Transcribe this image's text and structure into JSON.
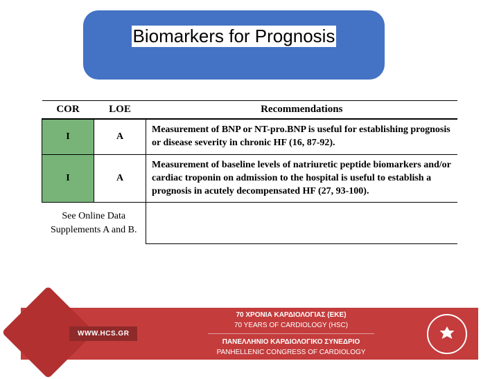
{
  "title": "Biomarkers for Prognosis",
  "table": {
    "headers": {
      "cor": "COR",
      "loe": "LOE",
      "rec": "Recommendations"
    },
    "rows": [
      {
        "cor": "I",
        "loe": "A",
        "cor_bg": "#78b478",
        "rec": "Measurement of BNP or NT-pro.BNP is useful for establishing prognosis or disease severity in chronic HF (16, 87-92)."
      },
      {
        "cor": "I",
        "loe": "A",
        "cor_bg": "#78b478",
        "rec": "Measurement of baseline levels of natriuretic peptide biomarkers and/or cardiac troponin on admission to the hospital is useful to establish a prognosis in acutely decompensated HF (27, 93-100)."
      }
    ],
    "supplement_note": "See Online Data Supplements A and B."
  },
  "footer": {
    "url": "WWW.HCS.GR",
    "line1_gr": "70 ΧΡΟΝΙΑ ΚΑΡΔΙΟΛΟΓΙΑΣ (ΕΚΕ)",
    "line1_en": "70 YEARS OF CARDIOLOGY (HSC)",
    "line2_gr": "ΠΑΝΕΛΛΗΝΙΟ ΚΑΡΔΙΟΛΟΓΙΚΟ ΣΥΝΕΔΡΙΟ",
    "line2_en": "PANHELLENIC CONGRESS OF CARDIOLOGY",
    "banner_bg": "#c43c3c"
  }
}
